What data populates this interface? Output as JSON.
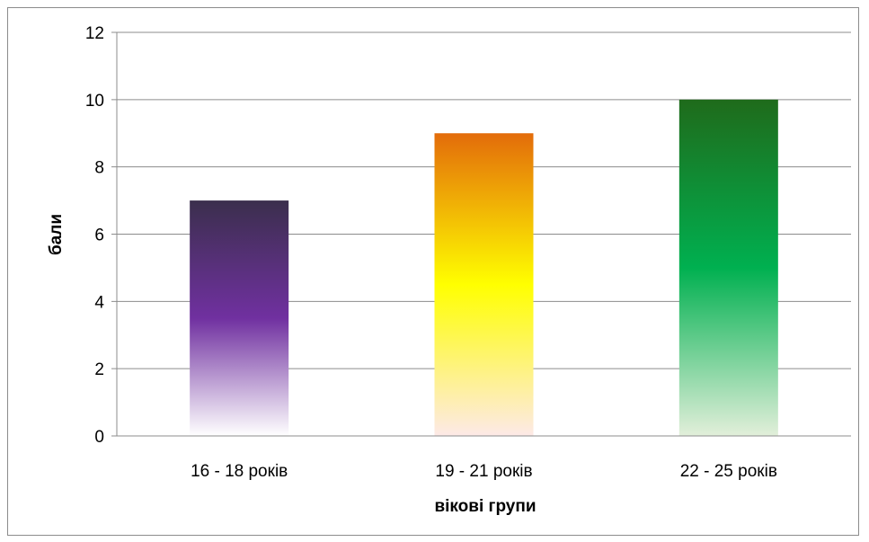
{
  "chart_data": {
    "type": "bar",
    "categories": [
      "16 - 18 років",
      "19 - 21 років",
      "22 - 25 років"
    ],
    "values": [
      7,
      9,
      10
    ],
    "xlabel": "вікові групи",
    "ylabel": "бали",
    "ylim": [
      0,
      12
    ],
    "yticks": [
      0,
      2,
      4,
      6,
      8,
      10,
      12
    ],
    "grid": true,
    "legend": "none",
    "bar_colors": [
      {
        "top": "#3b2f4d",
        "mid": "#7030a0",
        "bottom": "#ffffff"
      },
      {
        "top": "#e36c0a",
        "mid": "#ffff00",
        "bottom": "#fde9e7"
      },
      {
        "top": "#1f6b1b",
        "mid": "#00b050",
        "bottom": "#e2efda"
      }
    ]
  }
}
